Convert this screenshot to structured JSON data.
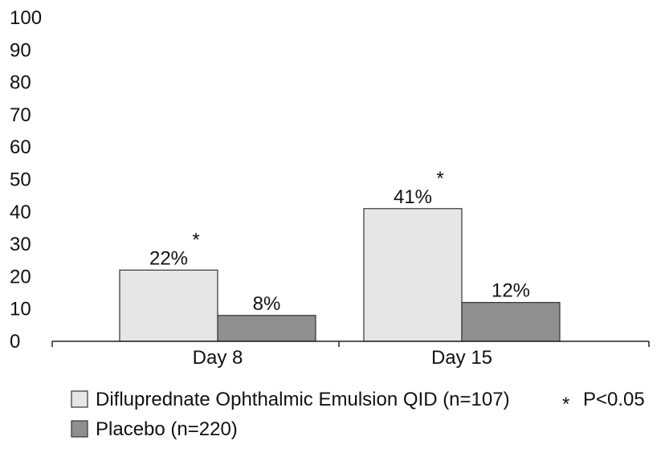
{
  "chart_data": {
    "type": "bar",
    "title": "",
    "xlabel": "",
    "ylabel": "",
    "ylim": [
      0,
      100
    ],
    "yticks": [
      "0",
      "10",
      "20",
      "30",
      "40",
      "50",
      "60",
      "70",
      "80",
      "90",
      "100"
    ],
    "categories": [
      "Day 8",
      "Day 15"
    ],
    "series": [
      {
        "name": "Difluprednate Ophthalmic Emulsion QID (n=107)",
        "color": "#e6e6e6",
        "values": [
          22,
          41
        ],
        "labels": [
          "22%",
          "41%"
        ],
        "significant": [
          true,
          true
        ]
      },
      {
        "name": "Placebo (n=220)",
        "color": "#8f8f8f",
        "values": [
          8,
          12
        ],
        "labels": [
          "8%",
          "12%"
        ],
        "significant": [
          false,
          false
        ]
      }
    ],
    "significance_marker": "*",
    "significance_note": "P<0.05",
    "grid": false,
    "legend_position": "bottom"
  }
}
